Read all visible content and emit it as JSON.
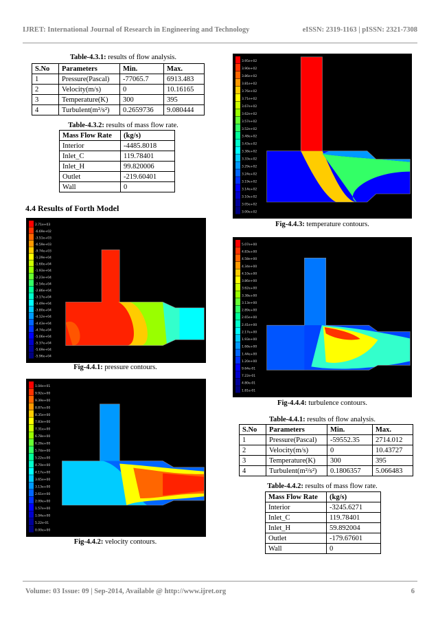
{
  "header": {
    "journal": "IJRET: International Journal of Research in Engineering and Technology",
    "issn": "eISSN: 2319-1163 | pISSN: 2321-7308"
  },
  "section_title": "4.4 Results of Forth Model",
  "table_431": {
    "label": "Table-4.3.1:",
    "caption": " results of flow analysis.",
    "headers": [
      "S.No",
      "Parameters",
      "Min.",
      "Max."
    ],
    "rows": [
      [
        "1",
        "Pressure(Pascal)",
        "-77065.7",
        "6913.483"
      ],
      [
        "2",
        "Velocity(m/s)",
        "0",
        "10.16165"
      ],
      [
        "3",
        "Temperature(K)",
        "300",
        "395"
      ],
      [
        "4",
        "Turbulent(m²/s²)",
        "0.2659736",
        "9.080444"
      ]
    ]
  },
  "table_432": {
    "label": "Table-4.3.2:",
    "caption": " results of mass flow rate.",
    "headers": [
      "Mass Flow Rate",
      "(kg/s)"
    ],
    "rows": [
      [
        "Interior",
        "-4485.8018"
      ],
      [
        "Inlet_C",
        "119.78401"
      ],
      [
        "Inlet_H",
        "99.820006"
      ],
      [
        "Outlet",
        "-219.60401"
      ],
      [
        "Wall",
        "0"
      ]
    ]
  },
  "table_441": {
    "label": "Table-4.4.1:",
    "caption": " results of flow analysis.",
    "headers": [
      "S.No",
      "Parameters",
      "Min.",
      "Max."
    ],
    "rows": [
      [
        "1",
        "Pressure(Pascal)",
        "-59552.35",
        "2714.012"
      ],
      [
        "2",
        "Velocity(m/s)",
        "0",
        "10.43727"
      ],
      [
        "3",
        "Temperature(K)",
        "300",
        "395"
      ],
      [
        "4",
        "Turbulent(m²/s²)",
        "0.1806357",
        "5.066483"
      ]
    ]
  },
  "table_442": {
    "label": "Table-4.4.2:",
    "caption": " results of mass flow rate.",
    "headers": [
      "Mass Flow Rate",
      "(kg/s)"
    ],
    "rows": [
      [
        "Interior",
        "-3245.6271"
      ],
      [
        "Inlet_C",
        "119.78401"
      ],
      [
        "Inlet_H",
        "59.892004"
      ],
      [
        "Outlet",
        "-179.67601"
      ],
      [
        "Wall",
        "0"
      ]
    ]
  },
  "figures": {
    "fig441": {
      "label": "Fig-4.4.1:",
      "caption": " pressure contours.",
      "legend": [
        "2.71e+03",
        "-6.69e+02",
        "-3.51e+03",
        "-6.59e+03",
        "-9.74e+03",
        "-1.29e+04",
        "-1.60e+04",
        "-1.93e+04",
        "-2.23e+04",
        "-2.54e+04",
        "-2.86e+04",
        "-3.17e+04",
        "-3.49e+04",
        "-3.80e+04",
        "-4.12e+04",
        "-4.43e+04",
        "-4.74e+04",
        "-5.06e+04",
        "-5.37e+04",
        "-5.69e+04",
        "-5.96e+04"
      ]
    },
    "fig442": {
      "label": "Fig-4.4.2:",
      "caption": " velocity contours.",
      "legend": [
        "1.04e+01",
        "9.92e+00",
        "9.39e+00",
        "8.87e+00",
        "8.35e+00",
        "7.83e+00",
        "7.31e+00",
        "6.78e+00",
        "6.26e+00",
        "5.74e+00",
        "5.22e+00",
        "4.70e+00",
        "4.17e+00",
        "3.65e+00",
        "3.13e+00",
        "2.61e+00",
        "2.09e+00",
        "1.57e+00",
        "1.04e+00",
        "5.22e-01",
        "0.00e+00"
      ]
    },
    "fig443": {
      "label": "Fig-4.4.3:",
      "caption": " temperature contours.",
      "legend": [
        "3.95e+02",
        "3.90e+02",
        "3.86e+02",
        "3.81e+02",
        "3.76e+02",
        "3.71e+02",
        "3.67e+02",
        "3.62e+02",
        "3.57e+02",
        "3.52e+02",
        "3.48e+02",
        "3.43e+02",
        "3.38e+02",
        "3.33e+02",
        "3.29e+02",
        "3.24e+02",
        "3.19e+02",
        "3.14e+02",
        "3.10e+02",
        "3.05e+02",
        "3.00e+02"
      ]
    },
    "fig444": {
      "label": "Fig-4.4.4:",
      "caption": " turbulence contours.",
      "legend": [
        "5.07e+00",
        "4.83e+00",
        "4.58e+00",
        "4.34e+00",
        "4.10e+00",
        "3.86e+00",
        "3.62e+00",
        "3.38e+00",
        "3.13e+00",
        "2.89e+00",
        "2.65e+00",
        "2.41e+00",
        "2.17e+00",
        "1.93e+00",
        "1.68e+00",
        "1.44e+00",
        "1.20e+00",
        "9.64e-01",
        "7.22e-01",
        "4.80e-01",
        "1.81e-01"
      ]
    }
  },
  "footer": {
    "volume": "Volume: 03 Issue: 09 | Sep-2014, Available @ ",
    "url": "http://www.ijret.org",
    "page": "6"
  }
}
